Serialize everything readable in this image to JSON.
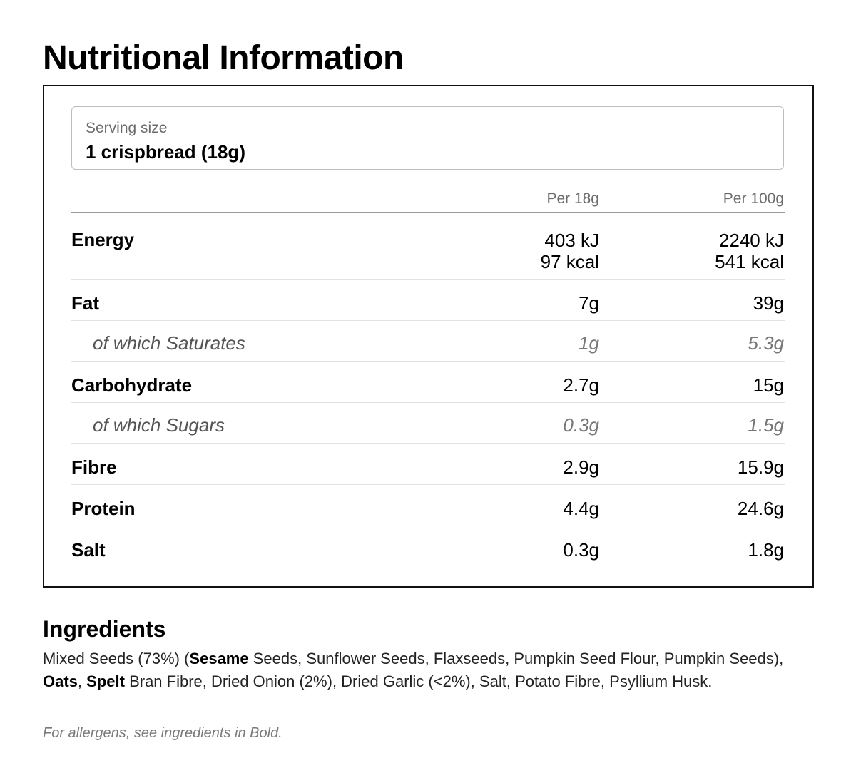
{
  "title": "Nutritional Information",
  "serving": {
    "label": "Serving size",
    "value": "1 crispbread (18g)"
  },
  "table": {
    "col_per_serving": "Per 18g",
    "col_per_100g": "Per 100g",
    "rows": [
      {
        "name": "Energy",
        "per_serving_1": "403 kJ",
        "per_serving_2": "97 kcal",
        "per_100g_1": "2240 kJ",
        "per_100g_2": "541 kcal"
      },
      {
        "name": "Fat",
        "per_serving": "7g",
        "per_100g": "39g"
      },
      {
        "name": "of which Saturates",
        "per_serving": "1g",
        "per_100g": "5.3g"
      },
      {
        "name": "Carbohydrate",
        "per_serving": "2.7g",
        "per_100g": "15g"
      },
      {
        "name": "of which Sugars",
        "per_serving": "0.3g",
        "per_100g": "1.5g"
      },
      {
        "name": "Fibre",
        "per_serving": "2.9g",
        "per_100g": "15.9g"
      },
      {
        "name": "Protein",
        "per_serving": "4.4g",
        "per_100g": "24.6g"
      },
      {
        "name": "Salt",
        "per_serving": "0.3g",
        "per_100g": "1.8g"
      }
    ]
  },
  "ingredients": {
    "heading": "Ingredients",
    "parts": [
      {
        "text": "Mixed Seeds (73%) (",
        "bold": false
      },
      {
        "text": "Sesame",
        "bold": true
      },
      {
        "text": " Seeds, Sunflower Seeds, Flaxseeds, Pumpkin Seed Flour, Pumpkin Seeds), ",
        "bold": false
      },
      {
        "text": "Oats",
        "bold": true
      },
      {
        "text": ", ",
        "bold": false
      },
      {
        "text": "Spelt",
        "bold": true
      },
      {
        "text": " Bran Fibre, Dried Onion (2%), Dried Garlic (<2%), Salt, Potato Fibre, Psyllium Husk.",
        "bold": false
      }
    ],
    "allergen_note": "For allergens, see ingredients in Bold."
  }
}
